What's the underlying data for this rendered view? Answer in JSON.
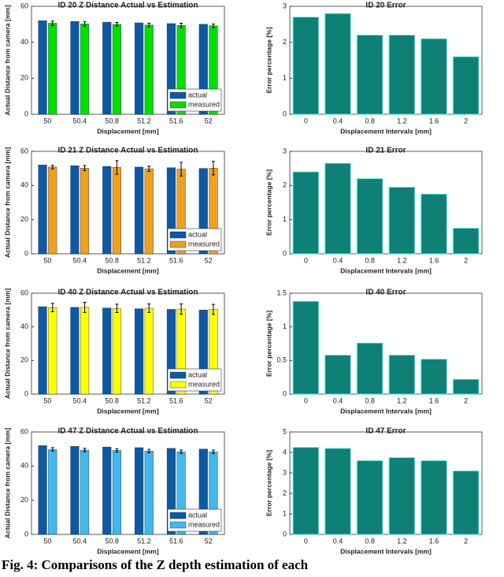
{
  "chart_data": [
    {
      "type": "bar",
      "title": "ID 20 Z Distance Actual vs Estimation",
      "xlabel": "Displacement [mm]",
      "ylabel": "Actual Distance from camera [mm]",
      "categories": [
        "50",
        "50.4",
        "50.8",
        "51.2",
        "51.6",
        "52"
      ],
      "ylim": [
        0,
        60
      ],
      "yticks": [
        0,
        20,
        40,
        60
      ],
      "legend": "lower right",
      "series": [
        {
          "name": "actual",
          "color": "#0c5aa6",
          "values": [
            52,
            51.6,
            51.2,
            50.8,
            50.4,
            50
          ]
        },
        {
          "name": "measured",
          "color": "#00e000",
          "values": [
            50.6,
            50.2,
            50,
            49.6,
            49.4,
            49.2
          ],
          "errors": [
            1.2,
            1.2,
            1,
            1,
            1.2,
            1
          ]
        }
      ]
    },
    {
      "type": "bar",
      "title": "ID 20 Error",
      "xlabel": "Displacement Intervals [mm]",
      "ylabel": "Error percentage [%]",
      "categories": [
        "0",
        "0.4",
        "0.8",
        "1.2",
        "1.6",
        "2"
      ],
      "ylim": [
        0,
        3
      ],
      "yticks": [
        0,
        1,
        2,
        3
      ],
      "color": "#0f8078",
      "values": [
        2.7,
        2.8,
        2.2,
        2.2,
        2.1,
        1.6
      ]
    },
    {
      "type": "bar",
      "title": "ID 21 Z Distance Actual vs Estimation",
      "xlabel": "Displacement [mm]",
      "ylabel": "Actual Distance from camera [mm]",
      "categories": [
        "50",
        "50.4",
        "50.8",
        "51.2",
        "51.6",
        "52"
      ],
      "ylim": [
        0,
        60
      ],
      "yticks": [
        0,
        20,
        40,
        60
      ],
      "legend": "lower right",
      "series": [
        {
          "name": "actual",
          "color": "#0c5aa6",
          "values": [
            52,
            51.6,
            51.2,
            50.8,
            50.4,
            50
          ]
        },
        {
          "name": "measured",
          "color": "#f0a020",
          "values": [
            50.8,
            50.2,
            50.6,
            49.8,
            49.6,
            50.2
          ],
          "errors": [
            1,
            1.5,
            4,
            1.5,
            4,
            4
          ]
        }
      ]
    },
    {
      "type": "bar",
      "title": "ID 21 Error",
      "xlabel": "Displacement Intervals [mm]",
      "ylabel": "Error percentage [%]",
      "categories": [
        "0",
        "0.4",
        "0.8",
        "1.2",
        "1.6",
        "2"
      ],
      "ylim": [
        0,
        3
      ],
      "yticks": [
        0,
        1,
        2,
        3
      ],
      "color": "#0f8078",
      "values": [
        2.4,
        2.65,
        2.2,
        1.95,
        1.75,
        0.75
      ]
    },
    {
      "type": "bar",
      "title": "ID 40 Z Distance Actual vs Estimation",
      "xlabel": "Displacement [mm]",
      "ylabel": "Actual Distance from camera [mm]",
      "categories": [
        "50",
        "50.4",
        "50.8",
        "51.2",
        "51.6",
        "52"
      ],
      "ylim": [
        0,
        60
      ],
      "yticks": [
        0,
        20,
        40,
        60
      ],
      "legend": "lower right",
      "series": [
        {
          "name": "actual",
          "color": "#0c5aa6",
          "values": [
            52,
            51.6,
            51.2,
            50.8,
            50.4,
            50
          ]
        },
        {
          "name": "measured",
          "color": "#ffff00",
          "values": [
            51.5,
            51.6,
            51,
            51.1,
            50.6,
            50.4
          ],
          "errors": [
            2.5,
            3,
            2.5,
            2.5,
            3,
            3
          ]
        }
      ]
    },
    {
      "type": "bar",
      "title": "ID 40 Error",
      "xlabel": "Displacement Intervals [mm]",
      "ylabel": "Error percentage [%]",
      "categories": [
        "0",
        "0.4",
        "0.8",
        "1.2",
        "1.6",
        "2"
      ],
      "ylim": [
        0,
        1.5
      ],
      "yticks": [
        0,
        0.5,
        1,
        1.5
      ],
      "color": "#0f8078",
      "values": [
        1.38,
        0.58,
        0.76,
        0.58,
        0.52,
        0.22
      ]
    },
    {
      "type": "bar",
      "title": "ID 47 Z Distance Actual vs Estimation",
      "xlabel": "Displacement [mm]",
      "ylabel": "Actual Distance from camera [mm]",
      "categories": [
        "50",
        "50.4",
        "50.8",
        "51.2",
        "51.6",
        "52"
      ],
      "ylim": [
        0,
        60
      ],
      "yticks": [
        0,
        20,
        40,
        60
      ],
      "legend": "lower right",
      "series": [
        {
          "name": "actual",
          "color": "#0c5aa6",
          "values": [
            52,
            51.6,
            51.2,
            50.8,
            50.4,
            50
          ]
        },
        {
          "name": "measured",
          "color": "#40b8f0",
          "values": [
            49.8,
            49.4,
            49.2,
            48.8,
            48.4,
            48.4
          ],
          "errors": [
            1,
            1,
            1,
            1,
            1,
            1
          ]
        }
      ]
    },
    {
      "type": "bar",
      "title": "ID 47 Error",
      "xlabel": "Displacement Intervals [mm]",
      "ylabel": "Error percentage [%]",
      "categories": [
        "0",
        "0.4",
        "0.8",
        "1.2",
        "1.6",
        "2"
      ],
      "ylim": [
        0,
        5
      ],
      "yticks": [
        0,
        1,
        2,
        3,
        4,
        5
      ],
      "color": "#0f8078",
      "values": [
        4.25,
        4.2,
        3.6,
        3.75,
        3.6,
        3.1
      ]
    }
  ],
  "caption": "Fig. 4: Comparisons of the Z depth estimation of each"
}
